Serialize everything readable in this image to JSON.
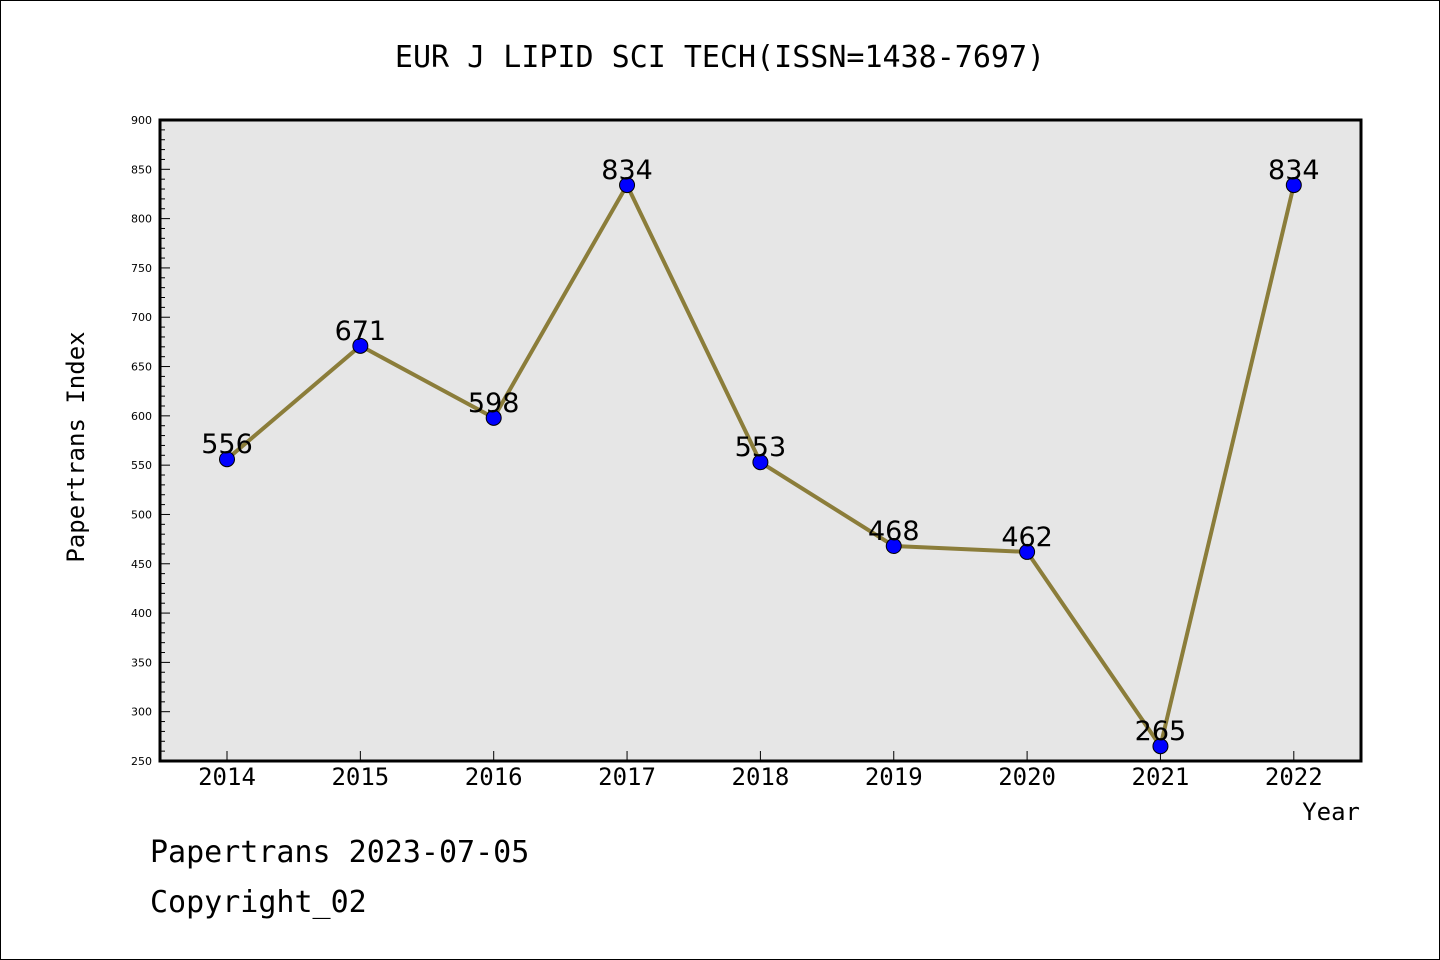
{
  "chart_data": {
    "type": "line",
    "title": "EUR J LIPID SCI TECH(ISSN=1438-7697)",
    "xlabel": "Year",
    "ylabel": "Papertrans Index",
    "categories": [
      "2014",
      "2015",
      "2016",
      "2017",
      "2018",
      "2019",
      "2020",
      "2021",
      "2022"
    ],
    "values": [
      556,
      671,
      598,
      834,
      553,
      468,
      462,
      265,
      834
    ],
    "data_labels": [
      "556",
      "671",
      "598",
      "834",
      "553",
      "468",
      "462",
      "265",
      "834"
    ],
    "ylim": [
      250,
      900
    ],
    "yticks": [
      250,
      300,
      350,
      400,
      450,
      500,
      550,
      600,
      650,
      700,
      750,
      800,
      850,
      900
    ],
    "grid": false,
    "legend": "none",
    "colors": {
      "plot_background": "#e6e6e6",
      "line": "#8b7d3a",
      "marker": "#0000ff",
      "axis": "#000000"
    }
  },
  "footer": {
    "date_line": "Papertrans 2023-07-05",
    "copyright": "Copyright_02"
  }
}
